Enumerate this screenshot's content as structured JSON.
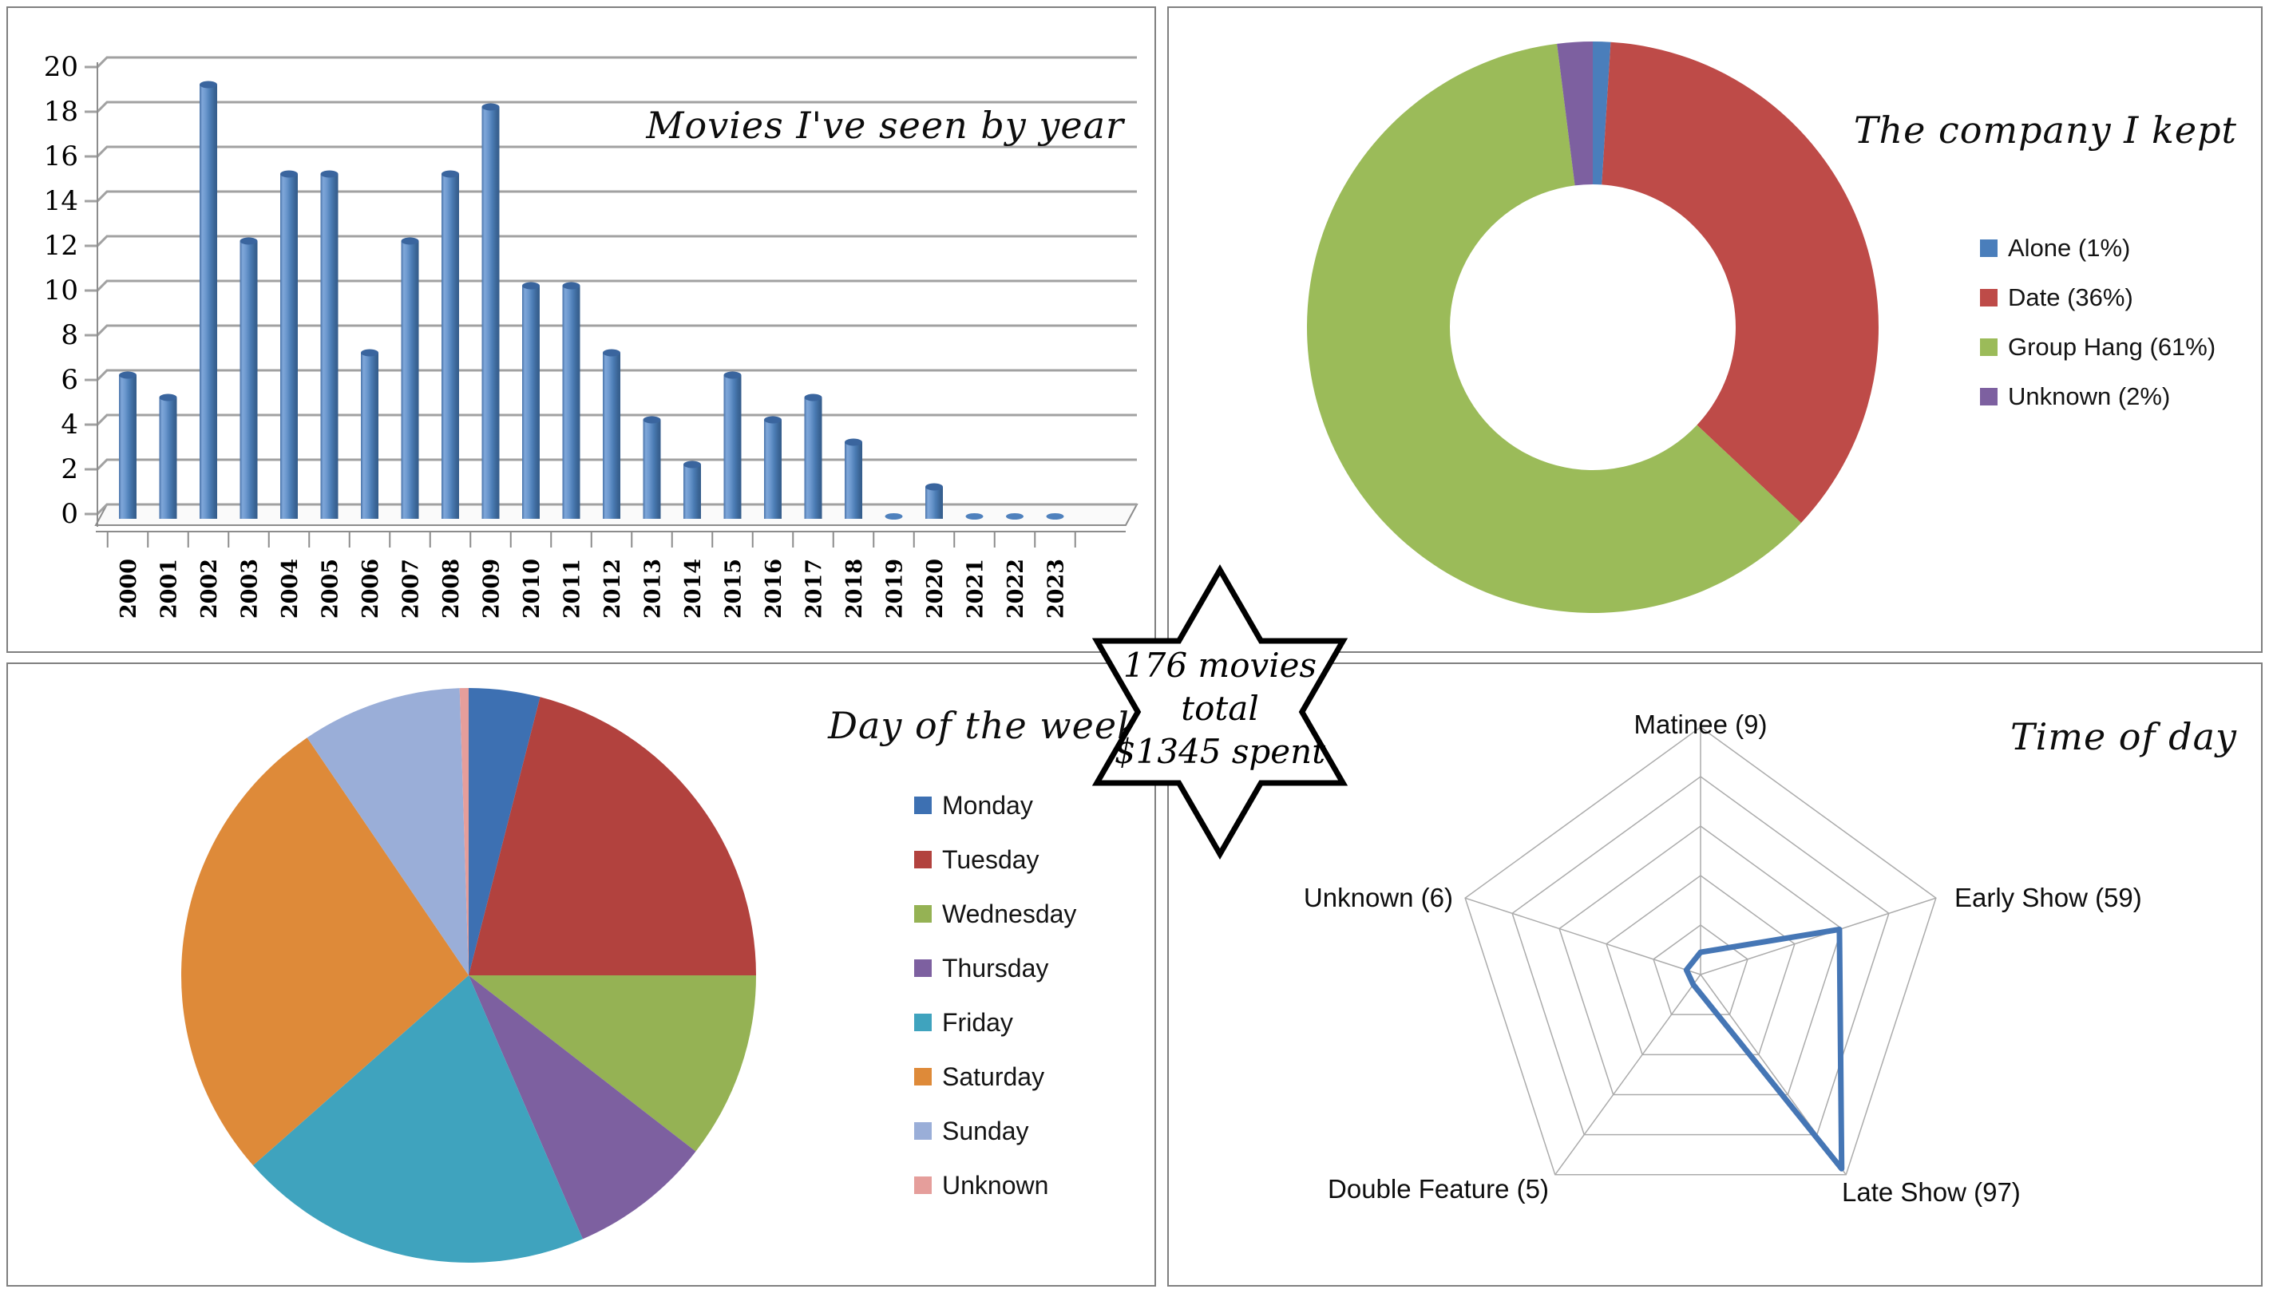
{
  "badge": {
    "line1": "176 movies",
    "line2": "total",
    "line3": "$1345 spent"
  },
  "colors": {
    "bar_fill": "#4F81BD",
    "grid_line": "#A1A1A1",
    "axis_line": "#8C8C8C",
    "radar_grid": "#ABABAB",
    "radar_line": "#4576B5",
    "panel_border": "#7F7F7F"
  },
  "chart_data": [
    {
      "id": "movies_by_year",
      "type": "bar",
      "title": "Movies I've seen by year",
      "categories": [
        "2000",
        "2001",
        "2002",
        "2003",
        "2004",
        "2005",
        "2006",
        "2007",
        "2008",
        "2009",
        "2010",
        "2011",
        "2012",
        "2013",
        "2014",
        "2015",
        "2016",
        "2017",
        "2018",
        "2019",
        "2020",
        "2021",
        "2022",
        "2023"
      ],
      "values": [
        6,
        5,
        19,
        12,
        15,
        15,
        7,
        12,
        15,
        18,
        10,
        10,
        7,
        4,
        2,
        6,
        4,
        5,
        3,
        0,
        1,
        0,
        0,
        0
      ],
      "xlabel": "",
      "ylabel": "",
      "ylim": [
        0,
        20
      ],
      "ytick_step": 2,
      "grid": true,
      "legend_position": "none",
      "bar_color": "#4F81BD"
    },
    {
      "id": "company_i_kept",
      "type": "pie",
      "subtype": "donut",
      "title": "The company I kept",
      "hole_ratio": 0.5,
      "start_angle_deg": 0,
      "clockwise": true,
      "legend_position": "right",
      "segments": [
        {
          "label": "Alone (1%)",
          "value": 1,
          "color": "#4A7EBB"
        },
        {
          "label": "Date (36%)",
          "value": 36,
          "color": "#BE4B48"
        },
        {
          "label": "Group Hang (61%)",
          "value": 61,
          "color": "#9BBB59"
        },
        {
          "label": "Unknown (2%)",
          "value": 2,
          "color": "#7D60A0"
        }
      ]
    },
    {
      "id": "day_of_week",
      "type": "pie",
      "subtype": "pie",
      "title": "Day of the week",
      "start_angle_deg": 0,
      "clockwise": true,
      "legend_position": "right",
      "segments": [
        {
          "label": "Monday",
          "value": 4,
          "color": "#3D70B2"
        },
        {
          "label": "Tuesday",
          "value": 21,
          "color": "#B2423E"
        },
        {
          "label": "Wednesday",
          "value": 10.5,
          "color": "#95B254"
        },
        {
          "label": "Thursday",
          "value": 8,
          "color": "#7D60A0"
        },
        {
          "label": "Friday",
          "value": 20,
          "color": "#3FA3BE"
        },
        {
          "label": "Saturday",
          "value": 27,
          "color": "#DE8A39"
        },
        {
          "label": "Sunday",
          "value": 9,
          "color": "#9AAED8"
        },
        {
          "label": "Unknown",
          "value": 0.5,
          "color": "#E59E9B"
        }
      ]
    },
    {
      "id": "time_of_day",
      "type": "radar",
      "title": "Time of day",
      "axes": [
        "Matinee (9)",
        "Early Show (59)",
        "Late Show (97)",
        "Double Feature (5)",
        "Unknown (6)"
      ],
      "values": [
        9,
        59,
        97,
        5,
        6
      ],
      "max": 100,
      "rings": 5,
      "grid": true,
      "line_color": "#4576B5"
    }
  ]
}
